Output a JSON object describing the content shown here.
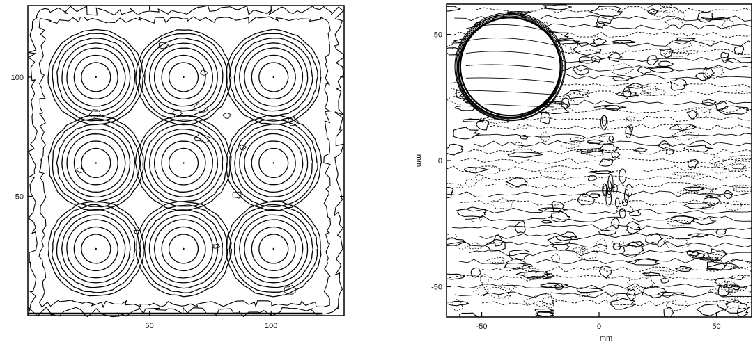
{
  "chart_data": [
    {
      "type": "contour",
      "title": "",
      "xlabel": "",
      "ylabel": "",
      "xlim": [
        0,
        130
      ],
      "ylim": [
        0,
        130
      ],
      "xticks": [
        {
          "value": 50,
          "label": "50"
        },
        {
          "value": 100,
          "label": "100"
        }
      ],
      "yticks": [
        {
          "value": 50,
          "label": "50"
        },
        {
          "value": 100,
          "label": "100"
        }
      ],
      "grid": false,
      "features": {
        "sources": [
          {
            "x": 28,
            "y": 100
          },
          {
            "x": 64,
            "y": 100
          },
          {
            "x": 101,
            "y": 100
          },
          {
            "x": 28,
            "y": 64
          },
          {
            "x": 64,
            "y": 64
          },
          {
            "x": 101,
            "y": 64
          },
          {
            "x": 28,
            "y": 28
          },
          {
            "x": 64,
            "y": 28
          },
          {
            "x": 101,
            "y": 28
          }
        ],
        "ring_radii": [
          6,
          9,
          12,
          14,
          16,
          18,
          19.5
        ]
      }
    },
    {
      "type": "contour",
      "title": "",
      "xlabel": "mm",
      "ylabel": "mm",
      "xlim": [
        -65,
        65
      ],
      "ylim": [
        -62,
        62
      ],
      "xticks": [
        {
          "value": -50,
          "label": "-50"
        },
        {
          "value": 0,
          "label": "0"
        },
        {
          "value": 50,
          "label": "50"
        }
      ],
      "yticks": [
        {
          "value": 50,
          "label": "50"
        },
        {
          "value": 0,
          "label": "0"
        },
        {
          "value": -50,
          "label": "-50"
        }
      ],
      "grid": false,
      "features": {
        "circle": {
          "cx": -38,
          "cy": 37,
          "r": 22
        }
      }
    }
  ]
}
